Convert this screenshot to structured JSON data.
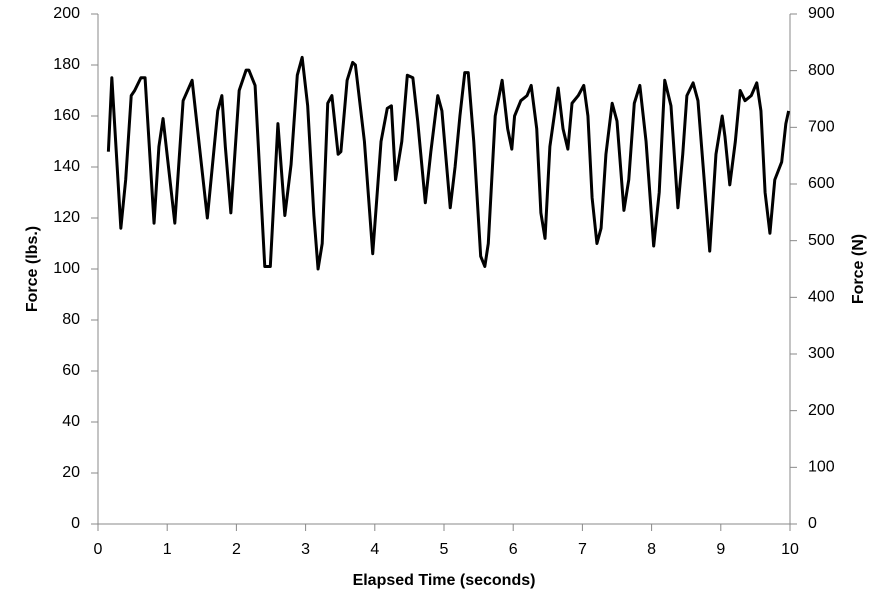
{
  "chart_data": {
    "type": "line",
    "xlabel": "Elapsed Time (seconds)",
    "ylabel": "Force (lbs.)",
    "y2label": "Force (N)",
    "x": [
      0.15,
      0.2,
      0.33,
      0.4,
      0.48,
      0.53,
      0.62,
      0.68,
      0.81,
      0.88,
      0.94,
      1.11,
      1.23,
      1.36,
      1.58,
      1.73,
      1.79,
      1.84,
      1.92,
      2.04,
      2.14,
      2.18,
      2.27,
      2.41,
      2.49,
      2.6,
      2.7,
      2.79,
      2.88,
      2.95,
      3.03,
      3.12,
      3.18,
      3.24,
      3.32,
      3.38,
      3.47,
      3.51,
      3.6,
      3.68,
      3.72,
      3.85,
      3.97,
      4.09,
      4.18,
      4.24,
      4.3,
      4.39,
      4.47,
      4.55,
      4.62,
      4.73,
      4.81,
      4.91,
      4.97,
      5.09,
      5.16,
      5.23,
      5.3,
      5.35,
      5.43,
      5.53,
      5.59,
      5.64,
      5.74,
      5.84,
      5.92,
      5.98,
      6.02,
      6.11,
      6.2,
      6.26,
      6.34,
      6.4,
      6.46,
      6.53,
      6.65,
      6.72,
      6.79,
      6.85,
      6.94,
      7.02,
      7.08,
      7.14,
      7.21,
      7.27,
      7.34,
      7.43,
      7.5,
      7.6,
      7.67,
      7.75,
      7.83,
      7.92,
      8.03,
      8.11,
      8.19,
      8.28,
      8.38,
      8.45,
      8.51,
      8.6,
      8.67,
      8.76,
      8.84,
      8.93,
      9.02,
      9.06,
      9.13,
      9.21,
      9.28,
      9.35,
      9.44,
      9.52,
      9.58,
      9.64,
      9.71,
      9.78,
      9.88,
      9.94,
      9.98
    ],
    "series": [
      {
        "color": "#000000",
        "values": [
          146,
          175,
          116,
          135,
          168,
          170,
          175,
          175,
          118,
          148,
          159,
          118,
          166,
          174,
          120,
          162,
          168,
          148,
          122,
          170,
          178,
          178,
          172,
          101,
          101,
          157,
          121,
          141,
          176,
          183,
          164,
          121,
          100,
          110,
          165,
          168,
          145,
          146,
          174,
          181,
          180,
          150,
          106,
          150,
          163,
          164,
          135,
          150,
          176,
          175,
          158,
          126,
          146,
          168,
          162,
          124,
          140,
          160,
          177,
          177,
          150,
          105,
          101,
          110,
          160,
          174,
          155,
          147,
          160,
          166,
          168,
          172,
          155,
          122,
          112,
          148,
          171,
          155,
          147,
          165,
          168,
          172,
          160,
          128,
          110,
          116,
          145,
          165,
          158,
          123,
          135,
          165,
          172,
          150,
          109,
          130,
          174,
          164,
          124,
          145,
          168,
          173,
          166,
          135,
          107,
          145,
          160,
          152,
          133,
          150,
          170,
          166,
          168,
          173,
          162,
          130,
          114,
          135,
          142,
          157,
          162
        ]
      }
    ],
    "xlim": [
      0,
      10
    ],
    "xticks": [
      0,
      1,
      2,
      3,
      4,
      5,
      6,
      7,
      8,
      9,
      10
    ],
    "ylim": [
      0,
      200
    ],
    "yticks": [
      0,
      20,
      40,
      60,
      80,
      100,
      120,
      140,
      160,
      180,
      200
    ],
    "y2lim": [
      0,
      900
    ],
    "y2ticks": [
      0,
      100,
      200,
      300,
      400,
      500,
      600,
      700,
      800,
      900
    ]
  }
}
